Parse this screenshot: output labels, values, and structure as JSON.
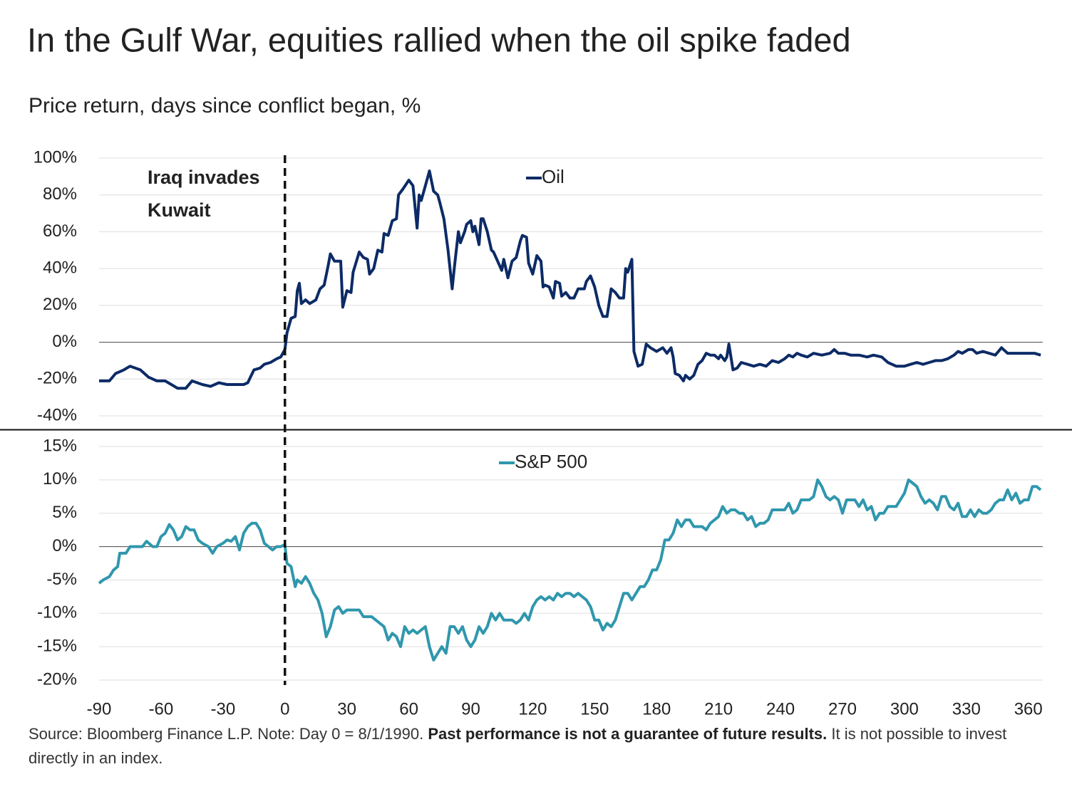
{
  "chart_data": [
    {
      "type": "line",
      "title": "In the Gulf War, equities rallied when the oil spike faded",
      "subtitle": "Price return, days since conflict began, %",
      "annotation": [
        "Iraq invades",
        "Kuwait"
      ],
      "vline": 0,
      "legend": "top-center",
      "xlim": [
        -90,
        367
      ],
      "ylim": [
        -40,
        100
      ],
      "yticks": [
        {
          "value": -40,
          "label": "-40%"
        },
        {
          "value": -20,
          "label": "-20%"
        },
        {
          "value": 0,
          "label": "0%"
        },
        {
          "value": 20,
          "label": "20%"
        },
        {
          "value": 40,
          "label": "40%"
        },
        {
          "value": 60,
          "label": "60%"
        },
        {
          "value": 80,
          "label": "80%"
        },
        {
          "value": 100,
          "label": "100%"
        }
      ],
      "grid": true,
      "x": [
        -90,
        -85,
        -82,
        -78,
        -75,
        -70,
        -66,
        -62,
        -58,
        -55,
        -52,
        -48,
        -45,
        -40,
        -36,
        -32,
        -28,
        -24,
        -20,
        -18,
        -15,
        -12,
        -10,
        -7,
        -4,
        -2,
        0,
        1,
        3,
        5,
        6,
        7,
        8,
        10,
        12,
        15,
        17,
        19,
        21,
        22,
        24,
        27,
        28,
        30,
        32,
        33,
        36,
        38,
        40,
        41,
        43,
        45,
        47,
        48,
        50,
        52,
        54,
        55,
        57,
        60,
        62,
        64,
        65,
        66,
        68,
        70,
        72,
        74,
        75,
        77,
        79,
        81,
        82,
        84,
        85,
        87,
        88,
        90,
        91,
        92,
        94,
        95,
        96,
        98,
        100,
        101,
        103,
        105,
        106,
        108,
        110,
        112,
        114,
        115,
        117,
        118,
        120,
        122,
        124,
        125,
        126,
        128,
        130,
        131,
        133,
        134,
        136,
        138,
        140,
        142,
        145,
        146,
        148,
        150,
        152,
        154,
        156,
        158,
        160,
        162,
        164,
        165,
        166,
        168,
        169,
        171,
        173,
        175,
        177,
        180,
        183,
        185,
        187,
        188,
        189,
        191,
        193,
        194,
        196,
        198,
        200,
        202,
        204,
        206,
        208,
        210,
        211,
        213,
        214,
        215,
        217,
        219,
        221,
        224,
        227,
        230,
        233,
        236,
        239,
        242,
        244,
        246,
        248,
        250,
        253,
        256,
        260,
        264,
        266,
        268,
        271,
        274,
        278,
        282,
        285,
        289,
        292,
        296,
        300,
        303,
        306,
        309,
        312,
        315,
        318,
        321,
        324,
        326,
        328,
        331,
        333,
        335,
        338,
        341,
        344,
        347,
        350,
        355,
        360,
        363,
        366
      ],
      "series": [
        {
          "name": "Oil",
          "color": "#0c2b66",
          "values": [
            -21,
            -21,
            -17,
            -15,
            -13,
            -15,
            -19,
            -21,
            -21,
            -23,
            -25,
            -25,
            -21,
            -23,
            -24,
            -22,
            -23,
            -23,
            -23,
            -22,
            -15,
            -14,
            -12,
            -11,
            -9,
            -8,
            -4,
            5,
            13,
            14,
            28,
            32,
            21,
            23,
            21,
            23,
            29,
            31,
            42,
            48,
            44,
            44,
            19,
            28,
            27,
            38,
            49,
            46,
            45,
            37,
            40,
            50,
            49,
            59,
            58,
            66,
            67,
            80,
            83,
            88,
            85,
            62,
            80,
            77,
            85,
            93,
            82,
            80,
            76,
            67,
            50,
            29,
            40,
            60,
            54,
            60,
            64,
            66,
            60,
            63,
            53,
            67,
            67,
            60,
            50,
            49,
            44,
            39,
            45,
            35,
            44,
            46,
            55,
            58,
            57,
            43,
            37,
            47,
            44,
            30,
            31,
            30,
            24,
            33,
            32,
            25,
            27,
            24,
            24,
            29,
            29,
            33,
            36,
            30,
            20,
            14,
            14,
            29,
            27,
            24,
            24,
            40,
            38,
            45,
            -5,
            -13,
            -12,
            -1,
            -3,
            -5,
            -3,
            -6,
            -3,
            -8,
            -17,
            -18,
            -21,
            -18,
            -20,
            -18,
            -12,
            -10,
            -6,
            -7,
            -7,
            -9,
            -7,
            -10,
            -8,
            -1,
            -15,
            -14,
            -11,
            -12,
            -13,
            -12,
            -13,
            -10,
            -11,
            -9,
            -7,
            -8,
            -6,
            -7,
            -8,
            -6,
            -7,
            -6,
            -4,
            -6,
            -6,
            -7,
            -7,
            -8,
            -7,
            -8,
            -11,
            -13,
            -13,
            -12,
            -11,
            -12,
            -11,
            -10,
            -10,
            -9,
            -7,
            -5,
            -6,
            -4,
            -4,
            -6,
            -5,
            -6,
            -7,
            -3,
            -6,
            -6,
            -6,
            -6,
            -7
          ]
        }
      ]
    },
    {
      "type": "line",
      "legend": "top-center",
      "xlim": [
        -90,
        367
      ],
      "xticks": [
        -90,
        -60,
        -30,
        0,
        30,
        60,
        90,
        120,
        150,
        180,
        210,
        240,
        270,
        300,
        330,
        360
      ],
      "ylim": [
        -20,
        15
      ],
      "yticks": [
        {
          "value": -20,
          "label": "-20%"
        },
        {
          "value": -15,
          "label": "-15%"
        },
        {
          "value": -10,
          "label": "-10%"
        },
        {
          "value": -5,
          "label": "-5%"
        },
        {
          "value": 0,
          "label": "0%"
        },
        {
          "value": 5,
          "label": "5%"
        },
        {
          "value": 10,
          "label": "10%"
        },
        {
          "value": 15,
          "label": "15%"
        }
      ],
      "grid": true,
      "x": [
        -90,
        -88,
        -85,
        -83,
        -81,
        -80,
        -77,
        -75,
        -72,
        -69,
        -67,
        -64,
        -62,
        -60,
        -58,
        -56,
        -54,
        -52,
        -50,
        -48,
        -46,
        -44,
        -42,
        -40,
        -37,
        -35,
        -33,
        -30,
        -28,
        -26,
        -24,
        -22,
        -20,
        -18,
        -16,
        -14,
        -12,
        -10,
        -8,
        -6,
        -4,
        -2,
        0,
        1,
        3,
        5,
        6,
        8,
        10,
        12,
        14,
        16,
        18,
        20,
        22,
        24,
        26,
        28,
        30,
        32,
        34,
        36,
        38,
        40,
        42,
        44,
        46,
        48,
        50,
        52,
        54,
        56,
        58,
        60,
        62,
        64,
        66,
        68,
        70,
        72,
        74,
        76,
        78,
        80,
        82,
        84,
        86,
        88,
        90,
        92,
        94,
        96,
        98,
        100,
        102,
        104,
        106,
        108,
        110,
        112,
        114,
        116,
        118,
        120,
        122,
        124,
        126,
        128,
        130,
        132,
        134,
        136,
        138,
        140,
        142,
        144,
        146,
        148,
        150,
        152,
        154,
        156,
        158,
        160,
        162,
        164,
        166,
        168,
        170,
        172,
        174,
        176,
        178,
        180,
        182,
        184,
        186,
        188,
        190,
        192,
        194,
        196,
        198,
        200,
        202,
        204,
        206,
        208,
        210,
        212,
        214,
        216,
        218,
        220,
        222,
        224,
        226,
        228,
        230,
        232,
        234,
        236,
        238,
        240,
        242,
        244,
        246,
        248,
        250,
        252,
        254,
        256,
        258,
        260,
        262,
        264,
        266,
        268,
        270,
        272,
        274,
        276,
        278,
        280,
        282,
        284,
        286,
        288,
        290,
        292,
        294,
        296,
        298,
        300,
        302,
        304,
        306,
        308,
        310,
        312,
        314,
        316,
        318,
        320,
        322,
        324,
        326,
        328,
        330,
        332,
        334,
        336,
        338,
        340,
        342,
        344,
        346,
        348,
        350,
        352,
        354,
        356,
        358,
        360,
        362,
        364,
        366
      ],
      "series": [
        {
          "name": "S&P 500",
          "color": "#2f97ad",
          "values": [
            -5.5,
            -5,
            -4.5,
            -3.5,
            -3,
            -1,
            -1,
            0,
            0,
            0,
            0.8,
            0,
            0,
            1.5,
            2,
            3.3,
            2.5,
            1,
            1.5,
            3,
            2.5,
            2.5,
            1,
            0.5,
            0,
            -1,
            0,
            0.5,
            1,
            0.8,
            1.5,
            -0.5,
            2,
            3,
            3.5,
            3.5,
            2.5,
            0.5,
            0,
            -0.5,
            0,
            0,
            0.3,
            -2.5,
            -3,
            -6,
            -5,
            -5.5,
            -4.5,
            -5.5,
            -7,
            -8,
            -10,
            -13.5,
            -12,
            -9.5,
            -9,
            -10,
            -9.5,
            -9.5,
            -9.5,
            -9.5,
            -10.5,
            -10.5,
            -10.5,
            -11,
            -11.5,
            -12,
            -14,
            -13,
            -13.5,
            -15,
            -12,
            -13,
            -12.5,
            -13,
            -12.5,
            -12,
            -15,
            -17,
            -16,
            -15,
            -16,
            -12,
            -12,
            -13,
            -12,
            -14,
            -15,
            -14,
            -12,
            -13,
            -12,
            -10,
            -11,
            -10,
            -11,
            -11,
            -11,
            -11.5,
            -11,
            -10,
            -11,
            -9,
            -8,
            -7.5,
            -8,
            -7.5,
            -8,
            -7,
            -7.5,
            -7,
            -7,
            -7.5,
            -7,
            -7.5,
            -8,
            -9,
            -11,
            -11,
            -12.5,
            -11.5,
            -12,
            -11,
            -9,
            -7,
            -7,
            -8,
            -7,
            -6,
            -6,
            -5,
            -3.5,
            -3.5,
            -2,
            1,
            1,
            2,
            4,
            3,
            4,
            4,
            3,
            3,
            3,
            2.5,
            3.5,
            4,
            4.5,
            6,
            5,
            5.5,
            5.5,
            5,
            5,
            4,
            4.5,
            3,
            3.5,
            3.5,
            4,
            5.5,
            5.5,
            5.5,
            5.5,
            6.5,
            5,
            5.5,
            7,
            7,
            7,
            7.5,
            10,
            9,
            7.5,
            7,
            7.5,
            7,
            5,
            7,
            7,
            7,
            6,
            7,
            5.5,
            6,
            4,
            5,
            5,
            6,
            6,
            6,
            7,
            8,
            10,
            9.5,
            9,
            7.5,
            6.5,
            7,
            6.5,
            5.5,
            7.5,
            7.5,
            6,
            5.5,
            6.5,
            4.5,
            4.5,
            5.5,
            4.5,
            5.5,
            5,
            5,
            5.5,
            6.5,
            7,
            7,
            8.5,
            7,
            8,
            6.5,
            7,
            7,
            9,
            9,
            8.5
          ]
        }
      ]
    }
  ],
  "footnote": {
    "text": "Source: Bloomberg Finance L.P. Note: Day 0 =  8/1/1990.",
    "bold": "Past performance is not a guarantee of future results.",
    "rest": "It is not possible to invest directly in an index."
  }
}
